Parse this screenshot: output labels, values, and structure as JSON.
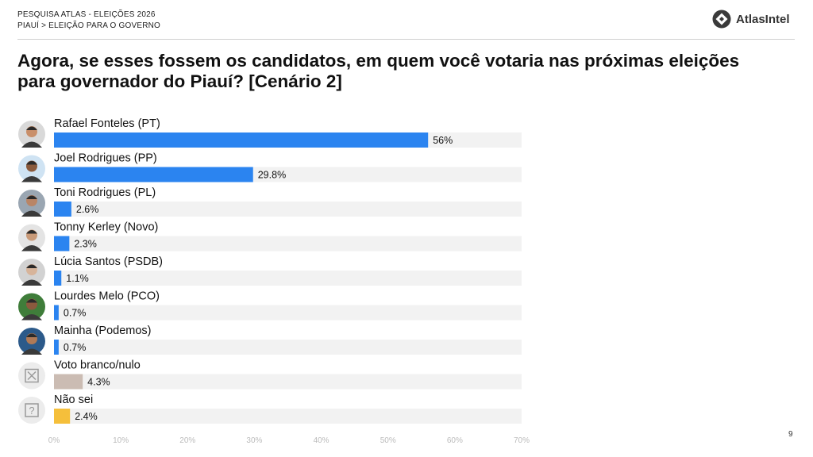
{
  "header": {
    "line1": "PESQUISA ATLAS - ELEIÇÕES 2026",
    "line2": "PIAUÍ > ELEIÇÃO PARA O GOVERNO",
    "brand": "AtlasIntel"
  },
  "page_number": "9",
  "colors": {
    "candidate": "#2b84f0",
    "blank": "#cbbcb3",
    "unknown": "#f5bf3b",
    "track": "#f2f2f2"
  },
  "chart_data": {
    "type": "bar",
    "orientation": "horizontal",
    "title": "Agora, se esses fossem os candidatos, em quem você votaria nas próximas eleições para governador do Piauí? [Cenário 2]",
    "categories": [
      "Rafael Fonteles (PT)",
      "Joel Rodrigues (PP)",
      "Toni Rodrigues (PL)",
      "Tonny Kerley (Novo)",
      "Lúcia Santos (PSDB)",
      "Lourdes Melo (PCO)",
      "Mainha (Podemos)",
      "Voto branco/nulo",
      "Não sei"
    ],
    "values": [
      56,
      29.8,
      2.6,
      2.3,
      1.1,
      0.7,
      0.7,
      4.3,
      2.4
    ],
    "value_labels": [
      "56%",
      "29.8%",
      "2.6%",
      "2.3%",
      "1.1%",
      "0.7%",
      "0.7%",
      "4.3%",
      "2.4%"
    ],
    "bar_colors": [
      "candidate",
      "candidate",
      "candidate",
      "candidate",
      "candidate",
      "candidate",
      "candidate",
      "blank",
      "unknown"
    ],
    "icons": [
      "candidate-photo",
      "candidate-photo",
      "candidate-photo",
      "candidate-photo",
      "candidate-photo",
      "candidate-photo",
      "candidate-photo",
      "blank-vote-icon",
      "question-icon"
    ],
    "xlim": [
      0,
      70
    ],
    "xticks": [
      "0%",
      "10%",
      "20%",
      "30%",
      "40%",
      "50%",
      "60%",
      "70%"
    ],
    "grid": false,
    "legend": "none"
  }
}
